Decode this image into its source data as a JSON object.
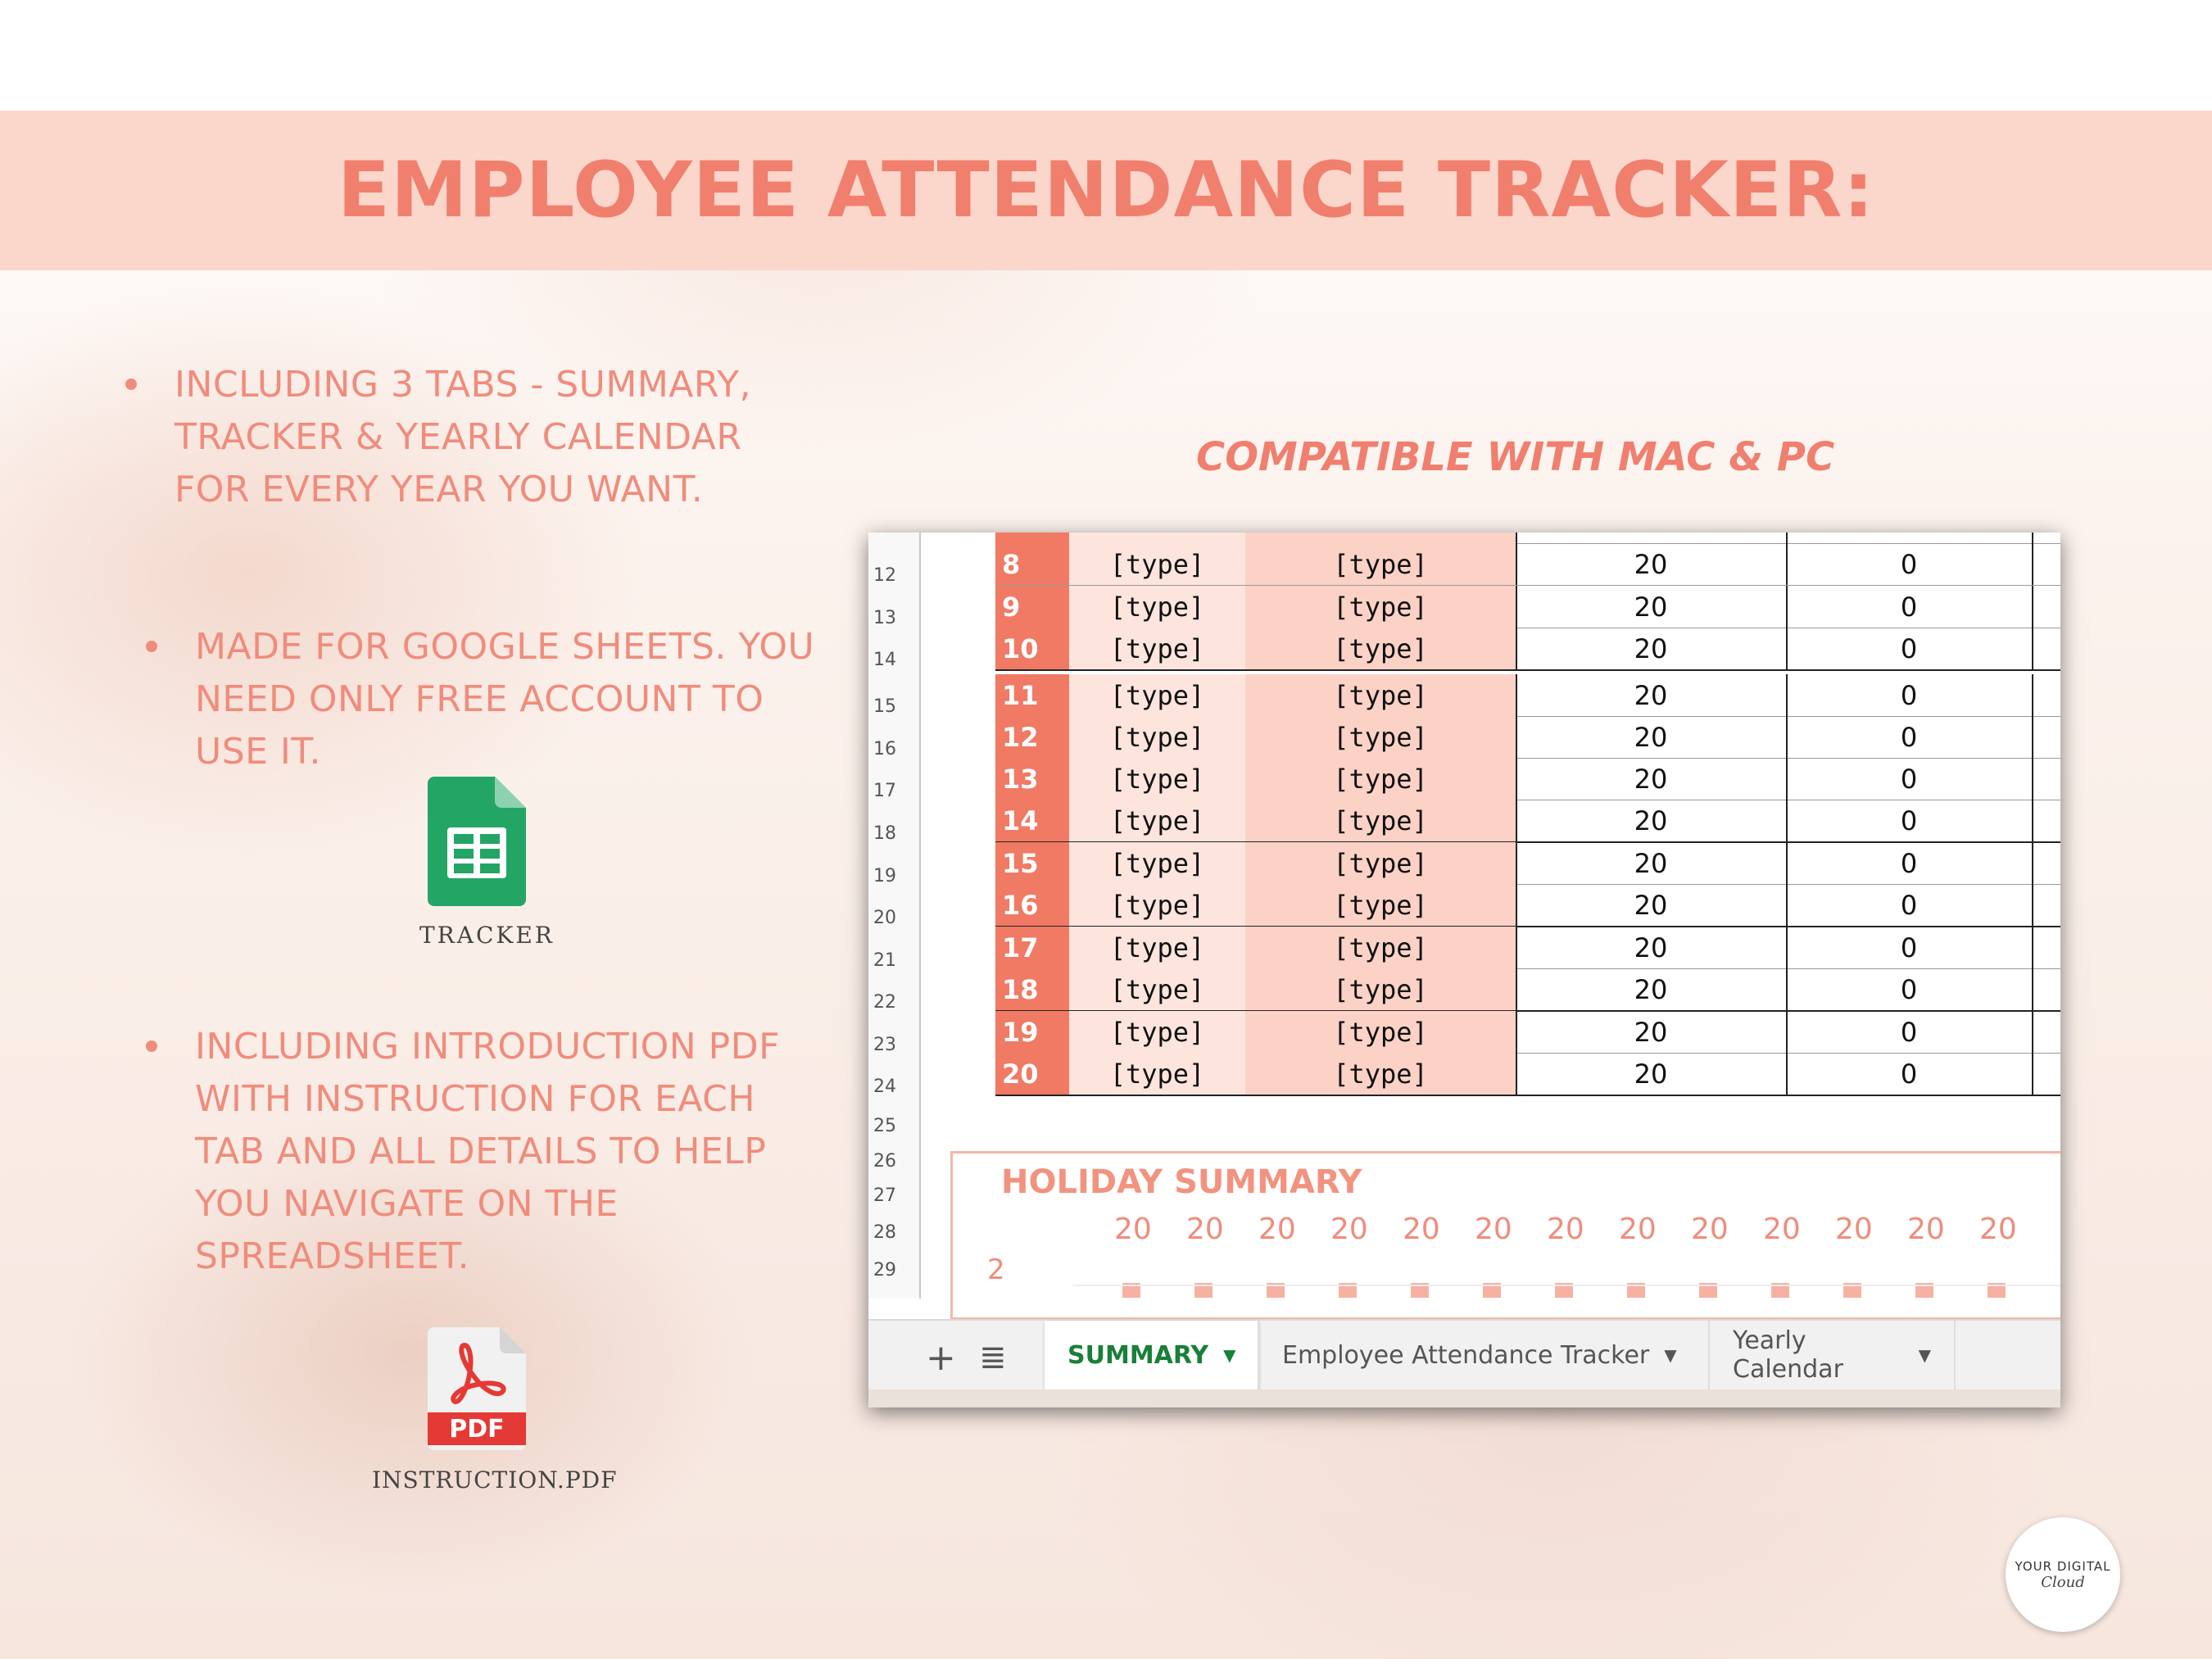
{
  "title": "EMPLOYEE ATTENDANCE TRACKER:",
  "bullets": [
    [
      "INCLUDING 3 TABS - SUMMARY,",
      "TRACKER & YEARLY CALENDAR",
      "FOR EVERY YEAR YOU WANT."
    ],
    [
      "MADE FOR GOOGLE SHEETS. YOU",
      "NEED ONLY FREE ACCOUNT TO",
      "USE IT."
    ],
    [
      "INCLUDING INTRODUCTION PDF",
      "WITH INSTRUCTION FOR EACH",
      "TAB AND ALL DETAILS TO HELP",
      "YOU NAVIGATE ON THE",
      "SPREADSHEET."
    ]
  ],
  "compatible": "COMPATIBLE WITH MAC & PC",
  "icons": {
    "sheets": {
      "name": "google-sheets-icon",
      "caption": "TRACKER"
    },
    "pdf": {
      "name": "pdf-icon",
      "label": "PDF",
      "caption": "INSTRUCTION.PDF"
    }
  },
  "sheet": {
    "row_numbers": [
      "12",
      "13",
      "14",
      "15",
      "16",
      "17",
      "18",
      "19",
      "20",
      "21",
      "22",
      "23",
      "24",
      "25",
      "26",
      "27",
      "28",
      "29"
    ],
    "rows": [
      {
        "num": "8",
        "type1": "[type]",
        "type2": "[type]",
        "v1": "20",
        "v2": "0"
      },
      {
        "num": "9",
        "type1": "[type]",
        "type2": "[type]",
        "v1": "20",
        "v2": "0"
      },
      {
        "num": "10",
        "type1": "[type]",
        "type2": "[type]",
        "v1": "20",
        "v2": "0"
      },
      {
        "num": "11",
        "type1": "[type]",
        "type2": "[type]",
        "v1": "20",
        "v2": "0"
      },
      {
        "num": "12",
        "type1": "[type]",
        "type2": "[type]",
        "v1": "20",
        "v2": "0"
      },
      {
        "num": "13",
        "type1": "[type]",
        "type2": "[type]",
        "v1": "20",
        "v2": "0"
      },
      {
        "num": "14",
        "type1": "[type]",
        "type2": "[type]",
        "v1": "20",
        "v2": "0"
      },
      {
        "num": "15",
        "type1": "[type]",
        "type2": "[type]",
        "v1": "20",
        "v2": "0"
      },
      {
        "num": "16",
        "type1": "[type]",
        "type2": "[type]",
        "v1": "20",
        "v2": "0"
      },
      {
        "num": "17",
        "type1": "[type]",
        "type2": "[type]",
        "v1": "20",
        "v2": "0"
      },
      {
        "num": "18",
        "type1": "[type]",
        "type2": "[type]",
        "v1": "20",
        "v2": "0"
      },
      {
        "num": "19",
        "type1": "[type]",
        "type2": "[type]",
        "v1": "20",
        "v2": "0"
      },
      {
        "num": "20",
        "type1": "[type]",
        "type2": "[type]",
        "v1": "20",
        "v2": "0"
      }
    ],
    "holiday_summary": {
      "title": "HOLIDAY SUMMARY",
      "values": [
        "20",
        "20",
        "20",
        "20",
        "20",
        "20",
        "20",
        "20",
        "20",
        "20",
        "20",
        "20",
        "20"
      ],
      "axis_label": "2"
    },
    "tabs": {
      "plus": "+",
      "menu": "≣",
      "items": [
        {
          "label": "SUMMARY",
          "active": true
        },
        {
          "label": "Employee Attendance Tracker",
          "active": false
        },
        {
          "label": "Yearly Calendar",
          "active": false
        }
      ],
      "caret": "▼"
    }
  },
  "logo": {
    "line1": "YOUR DIGITAL",
    "line2": "Cloud"
  },
  "colors": {
    "accent": "#f17f6d",
    "banner": "#fbd6ca",
    "sheets_green": "#188038",
    "pdf_red": "#e53935"
  }
}
